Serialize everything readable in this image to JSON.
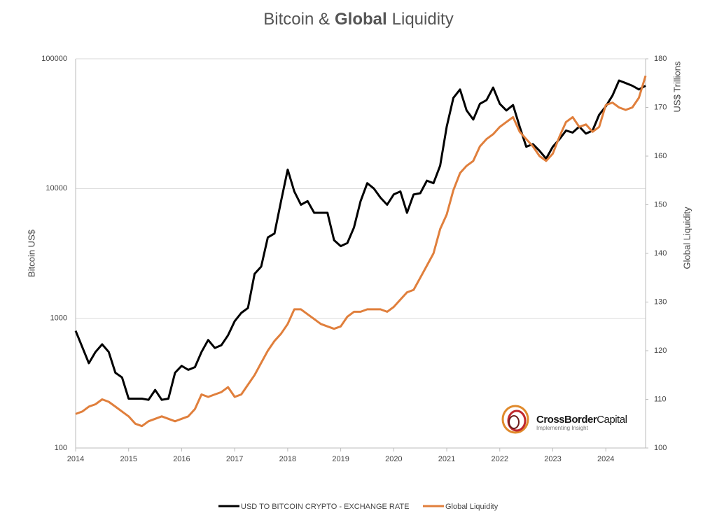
{
  "chart_data": {
    "type": "line",
    "title_parts": [
      "Bitcoin &",
      "Global",
      "Liquidity"
    ],
    "ylabel": "Bitcoin US$",
    "y2label_unit": "US$ Trillions",
    "y2label": "Global Liquidity",
    "logo": {
      "name_bold": "CrossBorder",
      "name_regular": "Capital",
      "tagline": "Implementing Insight"
    },
    "ylog": true,
    "grid": true,
    "xlim": [
      2014,
      2024.75
    ],
    "xticks": [
      2014,
      2015,
      2016,
      2017,
      2018,
      2019,
      2020,
      2021,
      2022,
      2023,
      2024
    ],
    "ylim": [
      100,
      100000
    ],
    "yticks": [
      100,
      1000,
      10000,
      100000
    ],
    "y2lim": [
      100,
      180
    ],
    "y2ticks": [
      100,
      110,
      120,
      130,
      140,
      150,
      160,
      170,
      180
    ],
    "x": [
      2014,
      2014.125,
      2014.25,
      2014.375,
      2014.5,
      2014.625,
      2014.75,
      2014.875,
      2015,
      2015.125,
      2015.25,
      2015.375,
      2015.5,
      2015.625,
      2015.75,
      2015.875,
      2016,
      2016.125,
      2016.25,
      2016.375,
      2016.5,
      2016.625,
      2016.75,
      2016.875,
      2017,
      2017.125,
      2017.25,
      2017.375,
      2017.5,
      2017.625,
      2017.75,
      2017.875,
      2018,
      2018.125,
      2018.25,
      2018.375,
      2018.5,
      2018.625,
      2018.75,
      2018.875,
      2019,
      2019.125,
      2019.25,
      2019.375,
      2019.5,
      2019.625,
      2019.75,
      2019.875,
      2020,
      2020.125,
      2020.25,
      2020.375,
      2020.5,
      2020.625,
      2020.75,
      2020.875,
      2021,
      2021.125,
      2021.25,
      2021.375,
      2021.5,
      2021.625,
      2021.75,
      2021.875,
      2022,
      2022.125,
      2022.25,
      2022.375,
      2022.5,
      2022.625,
      2022.75,
      2022.875,
      2023,
      2023.125,
      2023.25,
      2023.375,
      2023.5,
      2023.625,
      2023.75,
      2023.875,
      2024,
      2024.125,
      2024.25,
      2024.375,
      2024.5,
      2024.625,
      2024.75
    ],
    "series": [
      {
        "name": "USD TO BITCOIN CRYPTO - EXCHANGE RATE",
        "color": "#000000",
        "axis": "y",
        "values": [
          800,
          600,
          450,
          550,
          630,
          550,
          380,
          350,
          240,
          240,
          240,
          235,
          280,
          235,
          240,
          380,
          430,
          400,
          420,
          550,
          680,
          590,
          620,
          740,
          950,
          1100,
          1200,
          2200,
          2500,
          4200,
          4500,
          8000,
          14000,
          9500,
          7500,
          8000,
          6500,
          6500,
          6500,
          4000,
          3600,
          3800,
          5000,
          8000,
          11000,
          10000,
          8500,
          7500,
          9000,
          9500,
          6500,
          9000,
          9200,
          11500,
          11000,
          15000,
          30000,
          50000,
          58000,
          40000,
          34000,
          45000,
          48000,
          60000,
          45000,
          40000,
          44000,
          30000,
          21000,
          22000,
          19500,
          17000,
          21000,
          24000,
          28000,
          27000,
          30000,
          26500,
          28000,
          37000,
          43000,
          52000,
          68000,
          65000,
          62000,
          58000,
          62000
        ]
      },
      {
        "name": "Global Liquidity",
        "color": "#e07f3c",
        "axis": "y2",
        "values": [
          107,
          107.5,
          108.5,
          109,
          110,
          109.5,
          108.5,
          107.5,
          106.5,
          105,
          104.5,
          105.5,
          106,
          106.5,
          106,
          105.5,
          106,
          106.5,
          108,
          111,
          110.5,
          111,
          111.5,
          112.5,
          110.5,
          111,
          113,
          115,
          117.5,
          120,
          122,
          123.5,
          125.5,
          128.5,
          128.5,
          127.5,
          126.5,
          125.5,
          125,
          124.5,
          125,
          127,
          128,
          128,
          128.5,
          128.5,
          128.5,
          128,
          129,
          130.5,
          132,
          132.5,
          135,
          137.5,
          140,
          145,
          148,
          153,
          156.5,
          158,
          159,
          162,
          163.5,
          164.5,
          166,
          167,
          168,
          165,
          163.5,
          162,
          160,
          159,
          160.5,
          164,
          167,
          168,
          166,
          166.5,
          165,
          166,
          170.5,
          171,
          170,
          169.5,
          170,
          172,
          176.5
        ]
      }
    ]
  }
}
